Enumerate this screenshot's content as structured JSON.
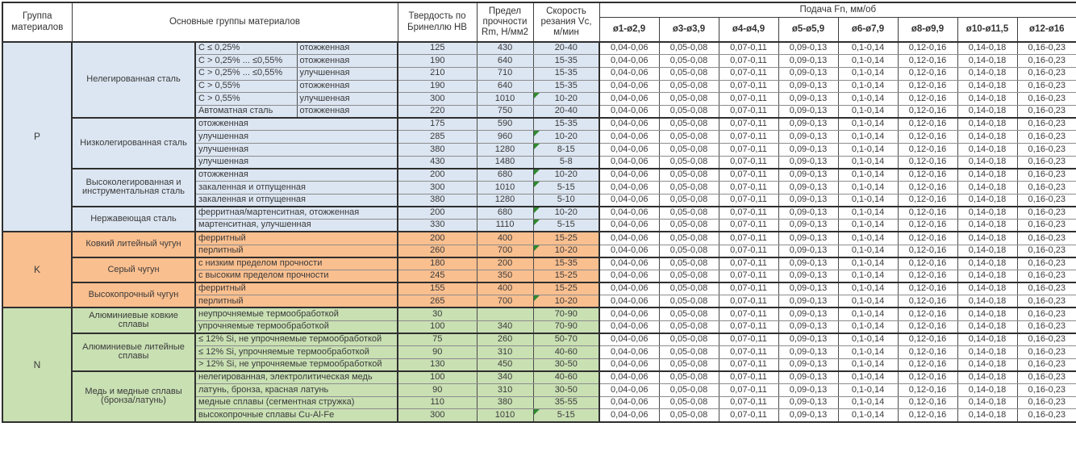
{
  "header": {
    "col_group": "Группа материалов",
    "col_main": "Основные группы материалов",
    "col_hb": "Твердость по Бринеллю HB",
    "col_rm": "Предел прочности Rm, Н/мм2",
    "col_vc": "Скорость резания Vc, м/мин",
    "col_feed": "Подача Fn, мм/об",
    "diameters": [
      "ø1-ø2,9",
      "ø3-ø3,9",
      "ø4-ø4,9",
      "ø5-ø5,9",
      "ø6-ø7,9",
      "ø8-ø9,9",
      "ø10-ø11,5",
      "ø12-ø16"
    ]
  },
  "feed_values": [
    "0,04-0,06",
    "0,05-0,08",
    "0,07-0,11",
    "0,09-0,13",
    "0,1-0,14",
    "0,12-0,16",
    "0,14-0,18",
    "0,16-0,23"
  ],
  "colors": {
    "group_P": "#dce6f2",
    "group_K": "#fabf8f",
    "group_N": "#c9e0b3",
    "note_triangle": "#2e8b2e",
    "border_dark": "#2f2f2f"
  },
  "groups": [
    {
      "id": "P",
      "label": "P",
      "families": [
        {
          "name": "Нелегированная сталь",
          "rows": [
            {
              "sub1": "C ≤ 0,25%",
              "sub2": "отожженная",
              "hb": "125",
              "rm": "430",
              "vc": "20-40",
              "flag": false
            },
            {
              "sub1": "C > 0,25% ... ≤0,55%",
              "sub2": "отожженная",
              "hb": "190",
              "rm": "640",
              "vc": "15-35",
              "flag": false
            },
            {
              "sub1": "C > 0,25% ... ≤0,55%",
              "sub2": "улучшенная",
              "hb": "210",
              "rm": "710",
              "vc": "15-35",
              "flag": false
            },
            {
              "sub1": "C > 0,55%",
              "sub2": "отожженная",
              "hb": "190",
              "rm": "640",
              "vc": "15-35",
              "flag": false
            },
            {
              "sub1": "C > 0,55%",
              "sub2": "улучшенная",
              "hb": "300",
              "rm": "1010",
              "vc": "10-20",
              "flag": true
            },
            {
              "sub1": "Автоматная сталь",
              "sub2": "отожженная",
              "hb": "220",
              "rm": "750",
              "vc": "20-40",
              "flag": false
            }
          ]
        },
        {
          "name": "Низколегированная сталь",
          "rows": [
            {
              "sub": "отожженная",
              "hb": "175",
              "rm": "590",
              "vc": "15-35",
              "flag": false
            },
            {
              "sub": "улучшенная",
              "hb": "285",
              "rm": "960",
              "vc": "10-20",
              "flag": true
            },
            {
              "sub": "улучшенная",
              "hb": "380",
              "rm": "1280",
              "vc": "8-15",
              "flag": true
            },
            {
              "sub": "улучшенная",
              "hb": "430",
              "rm": "1480",
              "vc": "5-8",
              "flag": false
            }
          ]
        },
        {
          "name": "Высоколегированная и инструментальная сталь",
          "rows": [
            {
              "sub": "отожженная",
              "hb": "200",
              "rm": "680",
              "vc": "10-20",
              "flag": true
            },
            {
              "sub": "закаленная и отпущенная",
              "hb": "300",
              "rm": "1010",
              "vc": "5-15",
              "flag": true
            },
            {
              "sub": "закаленная и отпущенная",
              "hb": "380",
              "rm": "1280",
              "vc": "5-10",
              "flag": false
            }
          ]
        },
        {
          "name": "Нержавеющая сталь",
          "rows": [
            {
              "sub": "ферритная/мартенситная, отожженная",
              "hb": "200",
              "rm": "680",
              "vc": "10-20",
              "flag": true
            },
            {
              "sub": "мартенситная, улучшенная",
              "hb": "330",
              "rm": "1110",
              "vc": "5-15",
              "flag": true
            }
          ]
        }
      ]
    },
    {
      "id": "K",
      "label": "K",
      "families": [
        {
          "name": "Ковкий литейный чугун",
          "rows": [
            {
              "sub": "ферритный",
              "hb": "200",
              "rm": "400",
              "vc": "15-25",
              "flag": false
            },
            {
              "sub": "перлитный",
              "hb": "260",
              "rm": "700",
              "vc": "10-20",
              "flag": true
            }
          ]
        },
        {
          "name": "Серый чугун",
          "rows": [
            {
              "sub": "с низким пределом прочности",
              "hb": "180",
              "rm": "200",
              "vc": "15-35",
              "flag": false
            },
            {
              "sub": "с высоким пределом прочности",
              "hb": "245",
              "rm": "350",
              "vc": "15-25",
              "flag": false
            }
          ]
        },
        {
          "name": "Высокопрочный чугун",
          "rows": [
            {
              "sub": "ферритный",
              "hb": "155",
              "rm": "400",
              "vc": "15-25",
              "flag": false
            },
            {
              "sub": "перлитный",
              "hb": "265",
              "rm": "700",
              "vc": "10-20",
              "flag": true
            }
          ]
        }
      ]
    },
    {
      "id": "N",
      "label": "N",
      "families": [
        {
          "name": "Алюминиевые ковкие сплавы",
          "rows": [
            {
              "sub": "неупрочняемые термообработкой",
              "hb": "30",
              "rm": "",
              "vc": "70-90",
              "flag": false
            },
            {
              "sub": "упрочняемые термообработкой",
              "hb": "100",
              "rm": "340",
              "vc": "70-90",
              "flag": false
            }
          ]
        },
        {
          "name": "Алюминиевые литейные сплавы",
          "rows": [
            {
              "sub": "≤ 12% Si, не упрочняемые термообработкой",
              "hb": "75",
              "rm": "260",
              "vc": "50-70",
              "flag": false
            },
            {
              "sub": "≤ 12% Si, упрочняемые термообработкой",
              "hb": "90",
              "rm": "310",
              "vc": "40-60",
              "flag": false
            },
            {
              "sub": "> 12% Si, не упрочняемые термообработкой",
              "hb": "130",
              "rm": "450",
              "vc": "30-50",
              "flag": false
            }
          ]
        },
        {
          "name": "Медь и медные сплавы (бронза/латунь)",
          "rows": [
            {
              "sub": "нелегированная, электролитическая медь",
              "hb": "100",
              "rm": "340",
              "vc": "40-60",
              "flag": false
            },
            {
              "sub": "латунь, бронза, красная латунь",
              "hb": "90",
              "rm": "310",
              "vc": "30-50",
              "flag": false
            },
            {
              "sub": "медные сплавы (сегментная стружка)",
              "hb": "110",
              "rm": "380",
              "vc": "35-55",
              "flag": false
            },
            {
              "sub": "высокопрочные сплавы Cu-Al-Fe",
              "hb": "300",
              "rm": "1010",
              "vc": "5-15",
              "flag": true
            }
          ]
        }
      ]
    }
  ]
}
